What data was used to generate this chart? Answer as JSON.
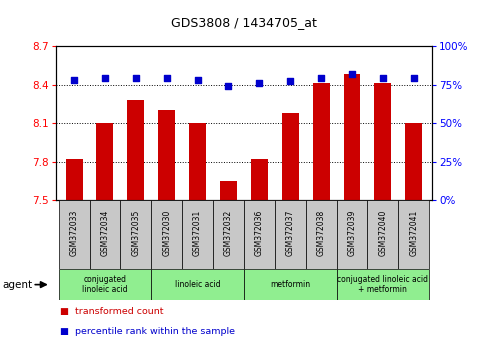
{
  "title": "GDS3808 / 1434705_at",
  "samples": [
    "GSM372033",
    "GSM372034",
    "GSM372035",
    "GSM372030",
    "GSM372031",
    "GSM372032",
    "GSM372036",
    "GSM372037",
    "GSM372038",
    "GSM372039",
    "GSM372040",
    "GSM372041"
  ],
  "bar_values": [
    7.82,
    8.1,
    8.28,
    8.2,
    8.1,
    7.65,
    7.82,
    8.18,
    8.41,
    8.48,
    8.41,
    8.1
  ],
  "dot_values": [
    78,
    79,
    79,
    79,
    78,
    74,
    76,
    77,
    79,
    82,
    79,
    79
  ],
  "ylim_left": [
    7.5,
    8.7
  ],
  "ylim_right": [
    0,
    100
  ],
  "yticks_left": [
    7.5,
    7.8,
    8.1,
    8.4,
    8.7
  ],
  "yticks_right": [
    0,
    25,
    50,
    75,
    100
  ],
  "bar_color": "#cc0000",
  "dot_color": "#0000cc",
  "plot_bg": "#ffffff",
  "sample_bg": "#c8c8c8",
  "agent_bg": "#90ee90",
  "agent_groups": [
    {
      "label": "conjugated\nlinoleic acid",
      "start": 0,
      "end": 3
    },
    {
      "label": "linoleic acid",
      "start": 3,
      "end": 6
    },
    {
      "label": "metformin",
      "start": 6,
      "end": 9
    },
    {
      "label": "conjugated linoleic acid\n+ metformin",
      "start": 9,
      "end": 12
    }
  ],
  "legend_bar_label": "transformed count",
  "legend_dot_label": "percentile rank within the sample",
  "agent_label": "agent",
  "fig_width": 4.83,
  "fig_height": 3.54,
  "dpi": 100
}
